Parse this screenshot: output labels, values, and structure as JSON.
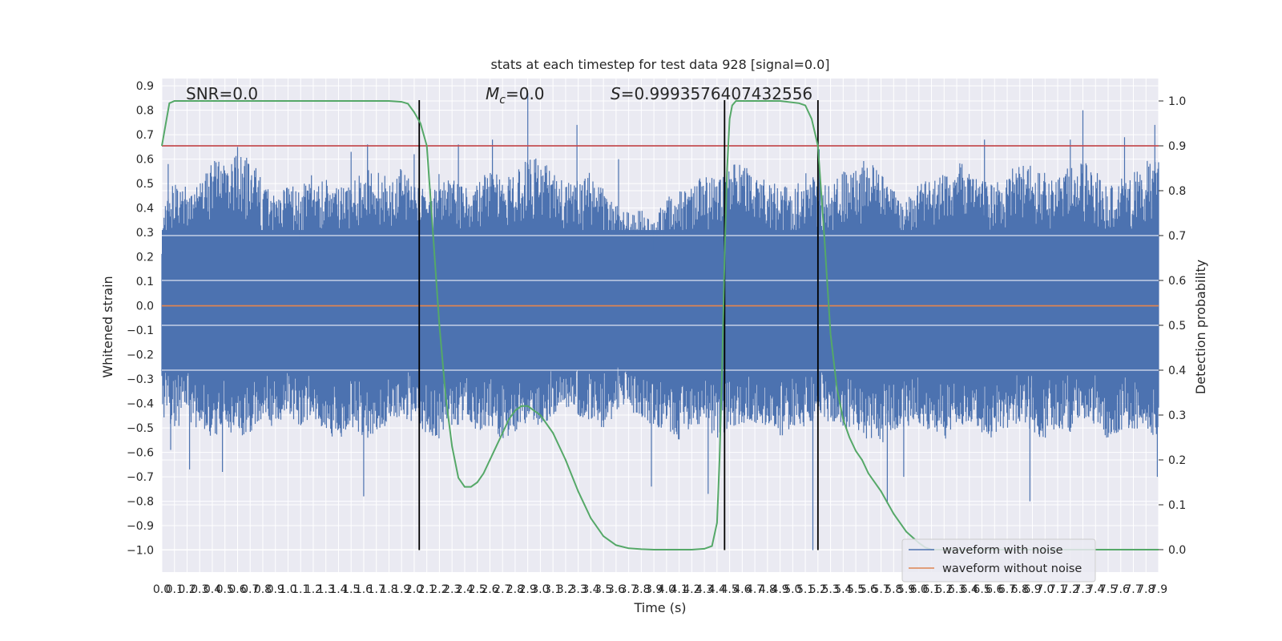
{
  "chart_data": {
    "type": "line",
    "title": "stats at each timestep for test data 928 [signal=0.0]",
    "xlabel": "Time (s)",
    "ylabel_left": "Whitened strain",
    "ylabel_right": "Detection probability",
    "xlim": [
      0.0,
      7.9
    ],
    "ylim_left": [
      -1.09,
      0.93
    ],
    "ylim_right": [
      -0.05,
      1.05
    ],
    "x_ticks": [
      "0.0",
      "0.1",
      "0.2",
      "0.3",
      "0.4",
      "0.5",
      "0.6",
      "0.7",
      "0.8",
      "0.9",
      "1.0",
      "1.1",
      "1.2",
      "1.3",
      "1.4",
      "1.5",
      "1.6",
      "1.7",
      "1.8",
      "1.9",
      "2.0",
      "2.1",
      "2.2",
      "2.3",
      "2.4",
      "2.5",
      "2.6",
      "2.7",
      "2.8",
      "2.9",
      "3.0",
      "3.1",
      "3.2",
      "3.3",
      "3.4",
      "3.5",
      "3.6",
      "3.7",
      "3.8",
      "3.9",
      "4.0",
      "4.1",
      "4.2",
      "4.3",
      "4.4",
      "4.5",
      "4.6",
      "4.7",
      "4.8",
      "4.9",
      "5.0",
      "5.1",
      "5.2",
      "5.3",
      "5.4",
      "5.5",
      "5.6",
      "5.7",
      "5.8",
      "5.9",
      "6.0",
      "6.1",
      "6.2",
      "6.3",
      "6.4",
      "6.5",
      "6.6",
      "6.7",
      "6.8",
      "6.9",
      "7.0",
      "7.1",
      "7.2",
      "7.3",
      "7.4",
      "7.5",
      "7.6",
      "7.7",
      "7.8",
      "7.9"
    ],
    "y_ticks_left": [
      "0.9",
      "0.8",
      "0.7",
      "0.6",
      "0.5",
      "0.4",
      "0.3",
      "0.2",
      "0.1",
      "0.0",
      "−0.1",
      "−0.2",
      "−0.3",
      "−0.4",
      "−0.5",
      "−0.6",
      "−0.7",
      "−0.8",
      "−0.9",
      "−1.0"
    ],
    "y_ticks_right": [
      "1.0",
      "0.9",
      "0.8",
      "0.7",
      "0.6",
      "0.5",
      "0.4",
      "0.3",
      "0.2",
      "0.1",
      "0.0"
    ],
    "annotations": {
      "snr": "SNR=0.0",
      "mc_symbol": "M",
      "mc_sub": "c",
      "mc_value": "=0.0",
      "s_symbol": "S",
      "s_value": "=0.9993576407432556"
    },
    "threshold": 0.9,
    "vertical_lines": [
      2.04,
      4.46,
      5.2
    ],
    "series": [
      {
        "name": "waveform with noise",
        "color": "#4c72b0",
        "envelope_upper": [
          0.37,
          0.55,
          0.48,
          0.5,
          0.6,
          0.58,
          0.62,
          0.6,
          0.52,
          0.45,
          0.5,
          0.48,
          0.55,
          0.52,
          0.48,
          0.5,
          0.55,
          0.58,
          0.52,
          0.6,
          0.5,
          0.48,
          0.55,
          0.52,
          0.48,
          0.5,
          0.6,
          0.52,
          0.55,
          0.6,
          0.62,
          0.55,
          0.5,
          0.52,
          0.55,
          0.48,
          0.42,
          0.38,
          0.4,
          0.35,
          0.45,
          0.5,
          0.48,
          0.55,
          0.52,
          0.58,
          0.6,
          0.55,
          0.52,
          0.5,
          0.48,
          0.55,
          0.52,
          0.5,
          0.55,
          0.58,
          0.6,
          0.55,
          0.48,
          0.45,
          0.5,
          0.52,
          0.55,
          0.6,
          0.58,
          0.52,
          0.5,
          0.55,
          0.58,
          0.6,
          0.55,
          0.52,
          0.58,
          0.6,
          0.55,
          0.5,
          0.52,
          0.55,
          0.6,
          0.62
        ],
        "envelope_lower": [
          -0.45,
          -0.5,
          -0.48,
          -0.52,
          -0.55,
          -0.5,
          -0.55,
          -0.52,
          -0.48,
          -0.5,
          -0.45,
          -0.5,
          -0.48,
          -0.52,
          -0.55,
          -0.5,
          -0.55,
          -0.52,
          -0.48,
          -0.45,
          -0.5,
          -0.52,
          -0.55,
          -0.5,
          -0.48,
          -0.52,
          -0.5,
          -0.55,
          -0.52,
          -0.48,
          -0.5,
          -0.45,
          -0.42,
          -0.45,
          -0.48,
          -0.5,
          -0.45,
          -0.42,
          -0.48,
          -0.5,
          -0.52,
          -0.55,
          -0.5,
          -0.48,
          -0.55,
          -0.5,
          -0.52,
          -0.48,
          -0.5,
          -0.55,
          -0.52,
          -0.5,
          -0.45,
          -0.48,
          -0.5,
          -0.52,
          -0.55,
          -0.58,
          -0.52,
          -0.5,
          -0.48,
          -0.52,
          -0.55,
          -0.5,
          -0.48,
          -0.52,
          -0.55,
          -0.5,
          -0.48,
          -0.52,
          -0.55,
          -0.5,
          -0.52,
          -0.48,
          -0.5,
          -0.55,
          -0.52,
          -0.5,
          -0.55,
          -0.52
        ],
        "spikes": [
          [
            0.05,
            0.58
          ],
          [
            0.07,
            -0.59
          ],
          [
            0.22,
            -0.67
          ],
          [
            0.48,
            -0.68
          ],
          [
            0.6,
            0.65
          ],
          [
            1.5,
            0.63
          ],
          [
            1.6,
            -0.78
          ],
          [
            1.63,
            0.66
          ],
          [
            2.0,
            0.62
          ],
          [
            2.35,
            0.66
          ],
          [
            2.62,
            0.68
          ],
          [
            2.9,
            0.87
          ],
          [
            3.29,
            0.74
          ],
          [
            3.62,
            0.6
          ],
          [
            3.88,
            -0.74
          ],
          [
            4.33,
            -0.77
          ],
          [
            4.48,
            0.56
          ],
          [
            5.16,
            -1.0
          ],
          [
            5.21,
            0.64
          ],
          [
            5.75,
            -0.81
          ],
          [
            5.88,
            -0.7
          ],
          [
            6.52,
            0.68
          ],
          [
            6.88,
            -0.8
          ],
          [
            7.2,
            0.68
          ],
          [
            7.3,
            0.8
          ],
          [
            7.63,
            0.69
          ],
          [
            7.87,
            0.74
          ],
          [
            7.89,
            -0.7
          ]
        ]
      },
      {
        "name": "waveform without noise",
        "color": "#dd8452",
        "values": [
          0.0,
          0.0
        ]
      },
      {
        "name": "",
        "color": "#55a868",
        "axis": "right",
        "x": [
          0.0,
          0.06,
          0.1,
          0.2,
          0.4,
          0.8,
          1.2,
          1.6,
          1.8,
          1.9,
          1.95,
          2.0,
          2.05,
          2.1,
          2.15,
          2.2,
          2.25,
          2.3,
          2.35,
          2.4,
          2.45,
          2.5,
          2.55,
          2.6,
          2.65,
          2.7,
          2.75,
          2.8,
          2.85,
          2.9,
          2.95,
          3.0,
          3.1,
          3.2,
          3.3,
          3.4,
          3.5,
          3.6,
          3.7,
          3.8,
          3.9,
          4.0,
          4.1,
          4.2,
          4.3,
          4.36,
          4.4,
          4.42,
          4.44,
          4.46,
          4.48,
          4.5,
          4.52,
          4.55,
          4.6,
          4.7,
          4.9,
          5.05,
          5.1,
          5.15,
          5.2,
          5.25,
          5.3,
          5.35,
          5.4,
          5.45,
          5.5,
          5.55,
          5.6,
          5.7,
          5.8,
          5.9,
          6.0,
          6.05,
          6.1,
          6.3,
          6.6,
          7.0,
          7.4,
          7.9
        ],
        "y": [
          0.9,
          0.995,
          1.0,
          1.0,
          1.0,
          1.0,
          1.0,
          1.0,
          1.0,
          0.998,
          0.994,
          0.975,
          0.95,
          0.9,
          0.7,
          0.5,
          0.34,
          0.23,
          0.16,
          0.14,
          0.14,
          0.15,
          0.17,
          0.2,
          0.23,
          0.26,
          0.29,
          0.31,
          0.32,
          0.32,
          0.31,
          0.3,
          0.26,
          0.2,
          0.13,
          0.07,
          0.03,
          0.01,
          0.003,
          0.001,
          0.0,
          0.0,
          0.0,
          0.0,
          0.002,
          0.008,
          0.06,
          0.2,
          0.4,
          0.65,
          0.85,
          0.96,
          0.99,
          1.0,
          1.0,
          1.0,
          1.0,
          0.995,
          0.99,
          0.96,
          0.9,
          0.7,
          0.48,
          0.36,
          0.29,
          0.25,
          0.22,
          0.2,
          0.17,
          0.13,
          0.08,
          0.04,
          0.015,
          0.005,
          0.0,
          0.0,
          0.0,
          0.0,
          0.0,
          0.0
        ]
      }
    ],
    "legend": {
      "placement": "lower-right",
      "entries": [
        "waveform with noise",
        "waveform without noise"
      ]
    },
    "grid": true
  }
}
